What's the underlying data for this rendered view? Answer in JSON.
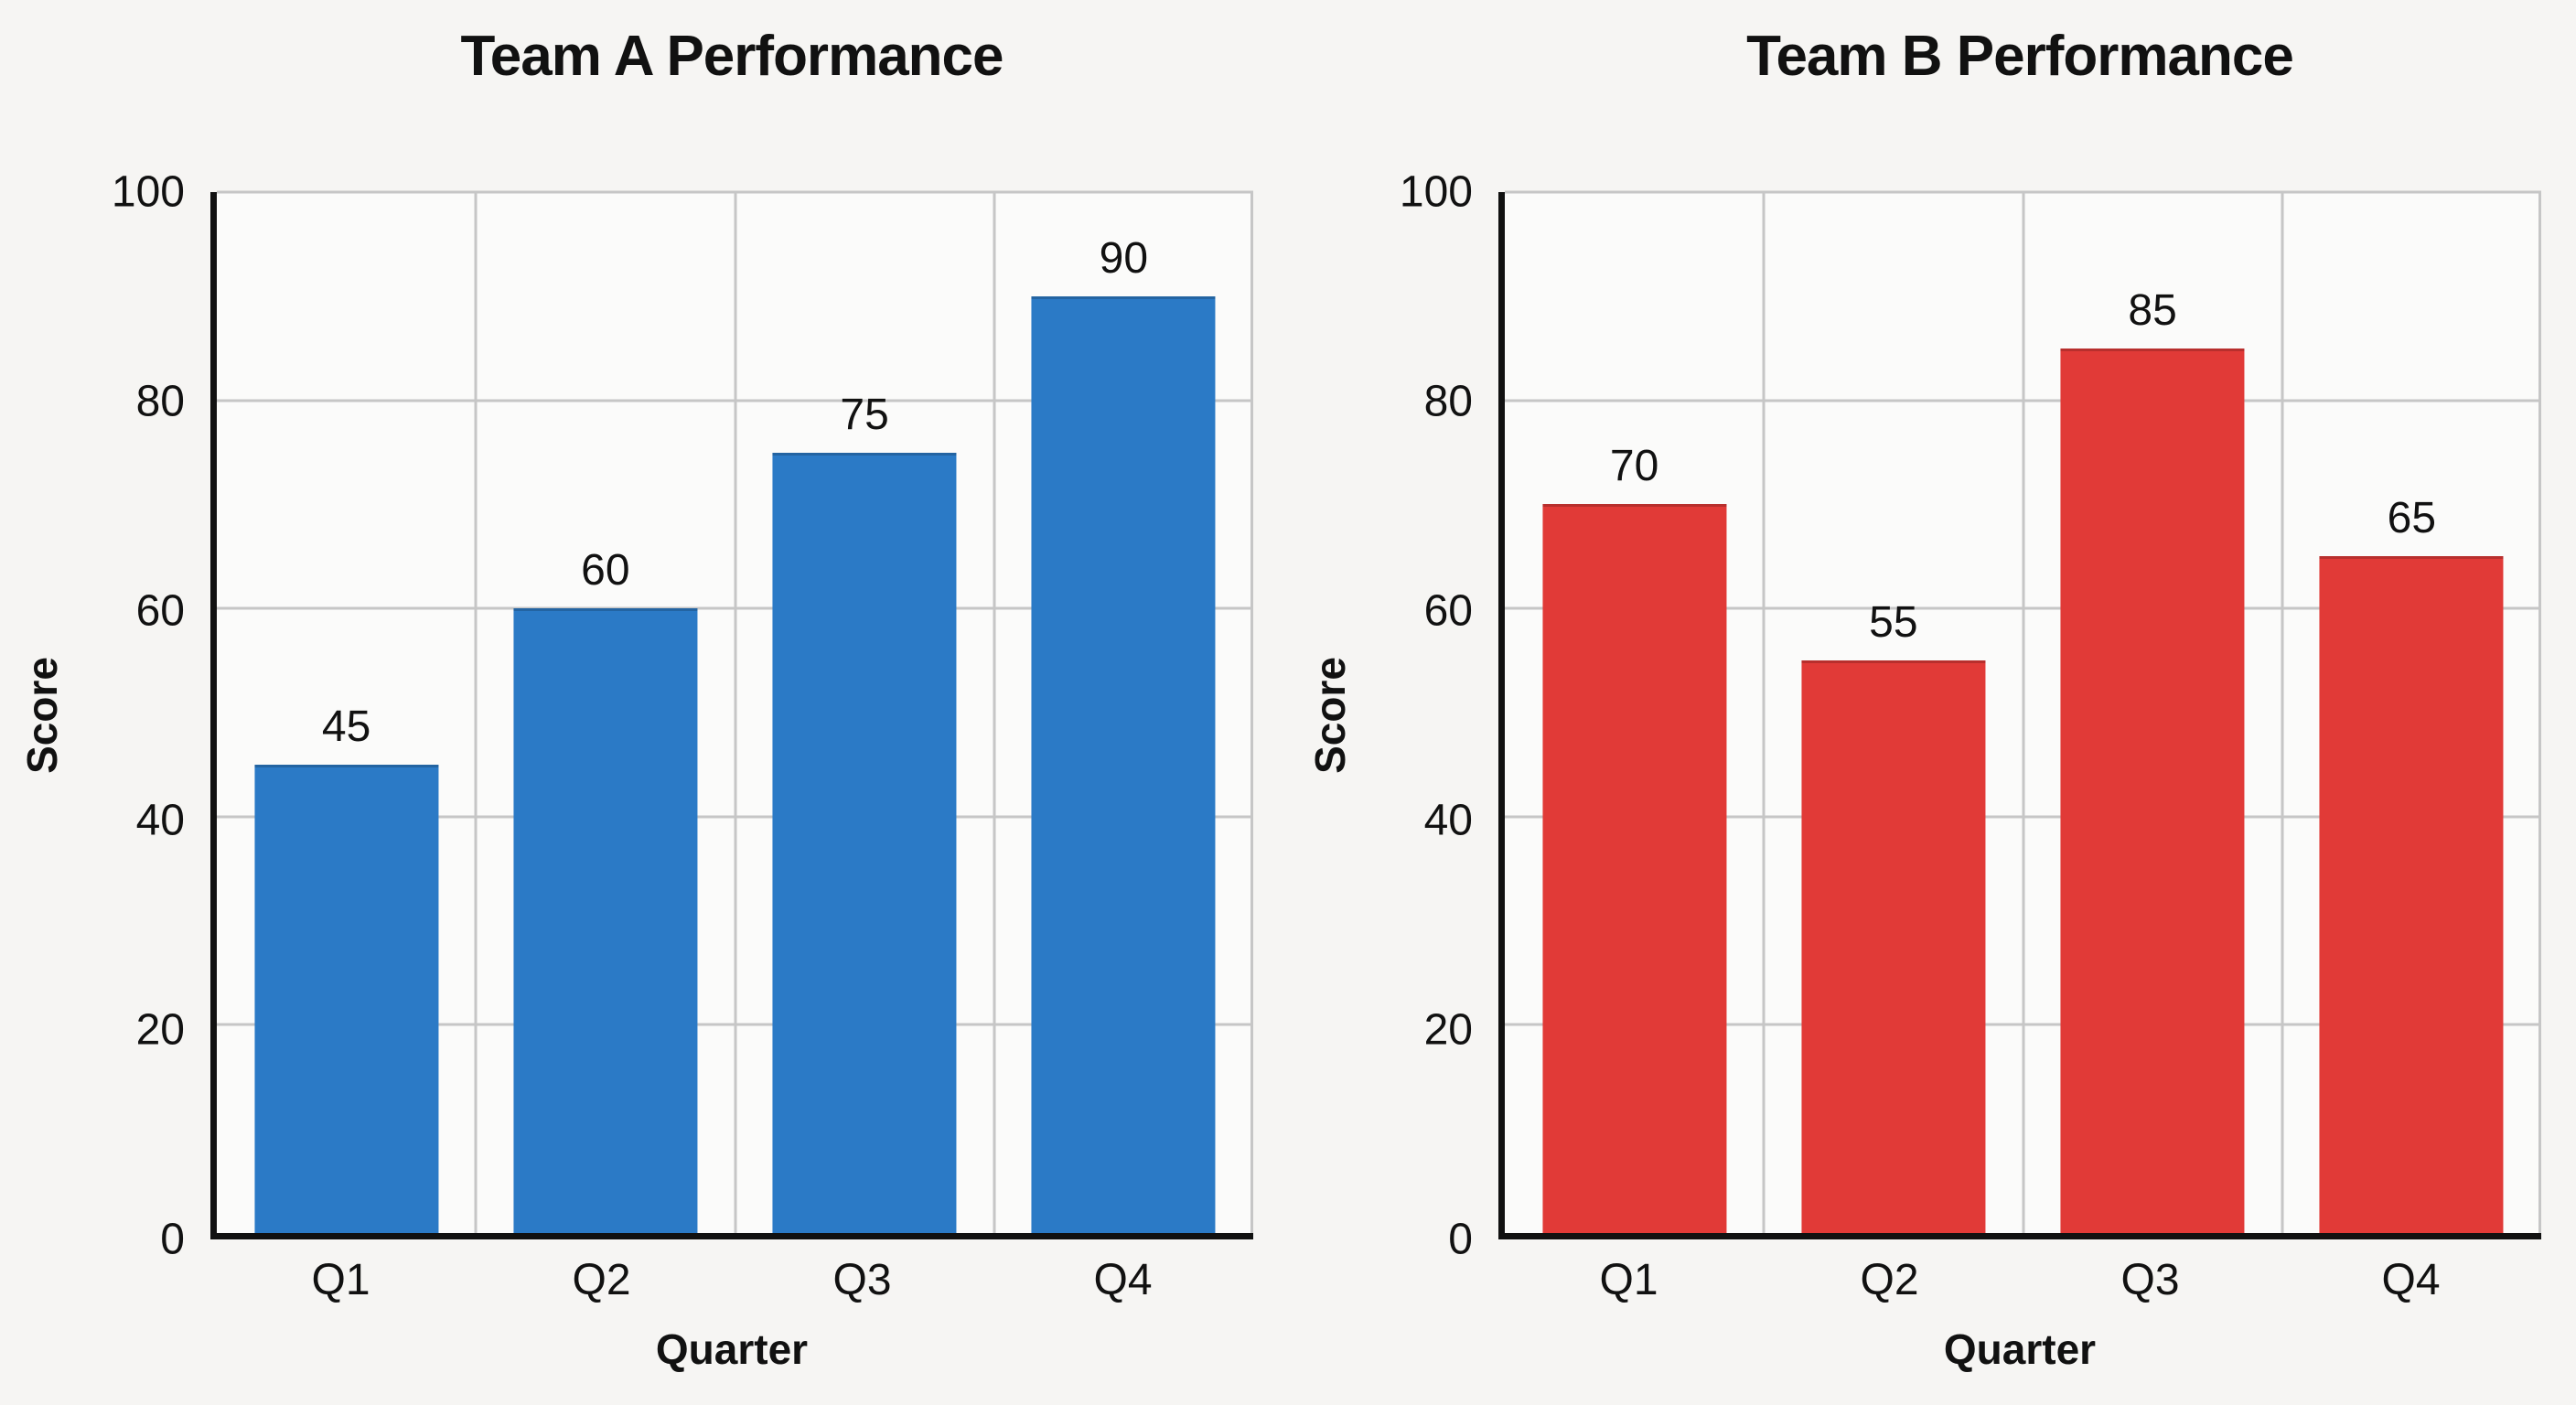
{
  "figure": {
    "background_color": "#f6f5f3",
    "plot_background_color": "#fbfbfa",
    "grid_color": "#c6c6c6",
    "spine_color": "#111111",
    "text_color": "#111111"
  },
  "chart_data": [
    {
      "type": "bar",
      "title": "Team A Performance",
      "xlabel": "Quarter",
      "ylabel": "Score",
      "categories": [
        "Q1",
        "Q2",
        "Q3",
        "Q4"
      ],
      "values": [
        45,
        60,
        75,
        90
      ],
      "value_labels": [
        "45",
        "60",
        "75",
        "90"
      ],
      "bar_color": "#2b7ac6",
      "ylim": [
        0,
        100
      ],
      "y_ticks": [
        "0",
        "20",
        "40",
        "60",
        "80",
        "100"
      ],
      "grid": true,
      "legend": false
    },
    {
      "type": "bar",
      "title": "Team B Performance",
      "xlabel": "Quarter",
      "ylabel": "Score",
      "categories": [
        "Q1",
        "Q2",
        "Q3",
        "Q4"
      ],
      "values": [
        70,
        55,
        85,
        65
      ],
      "value_labels": [
        "70",
        "55",
        "85",
        "65"
      ],
      "bar_color": "#e13a37",
      "ylim": [
        0,
        100
      ],
      "y_ticks": [
        "0",
        "20",
        "40",
        "60",
        "80",
        "100"
      ],
      "grid": true,
      "legend": false
    }
  ]
}
